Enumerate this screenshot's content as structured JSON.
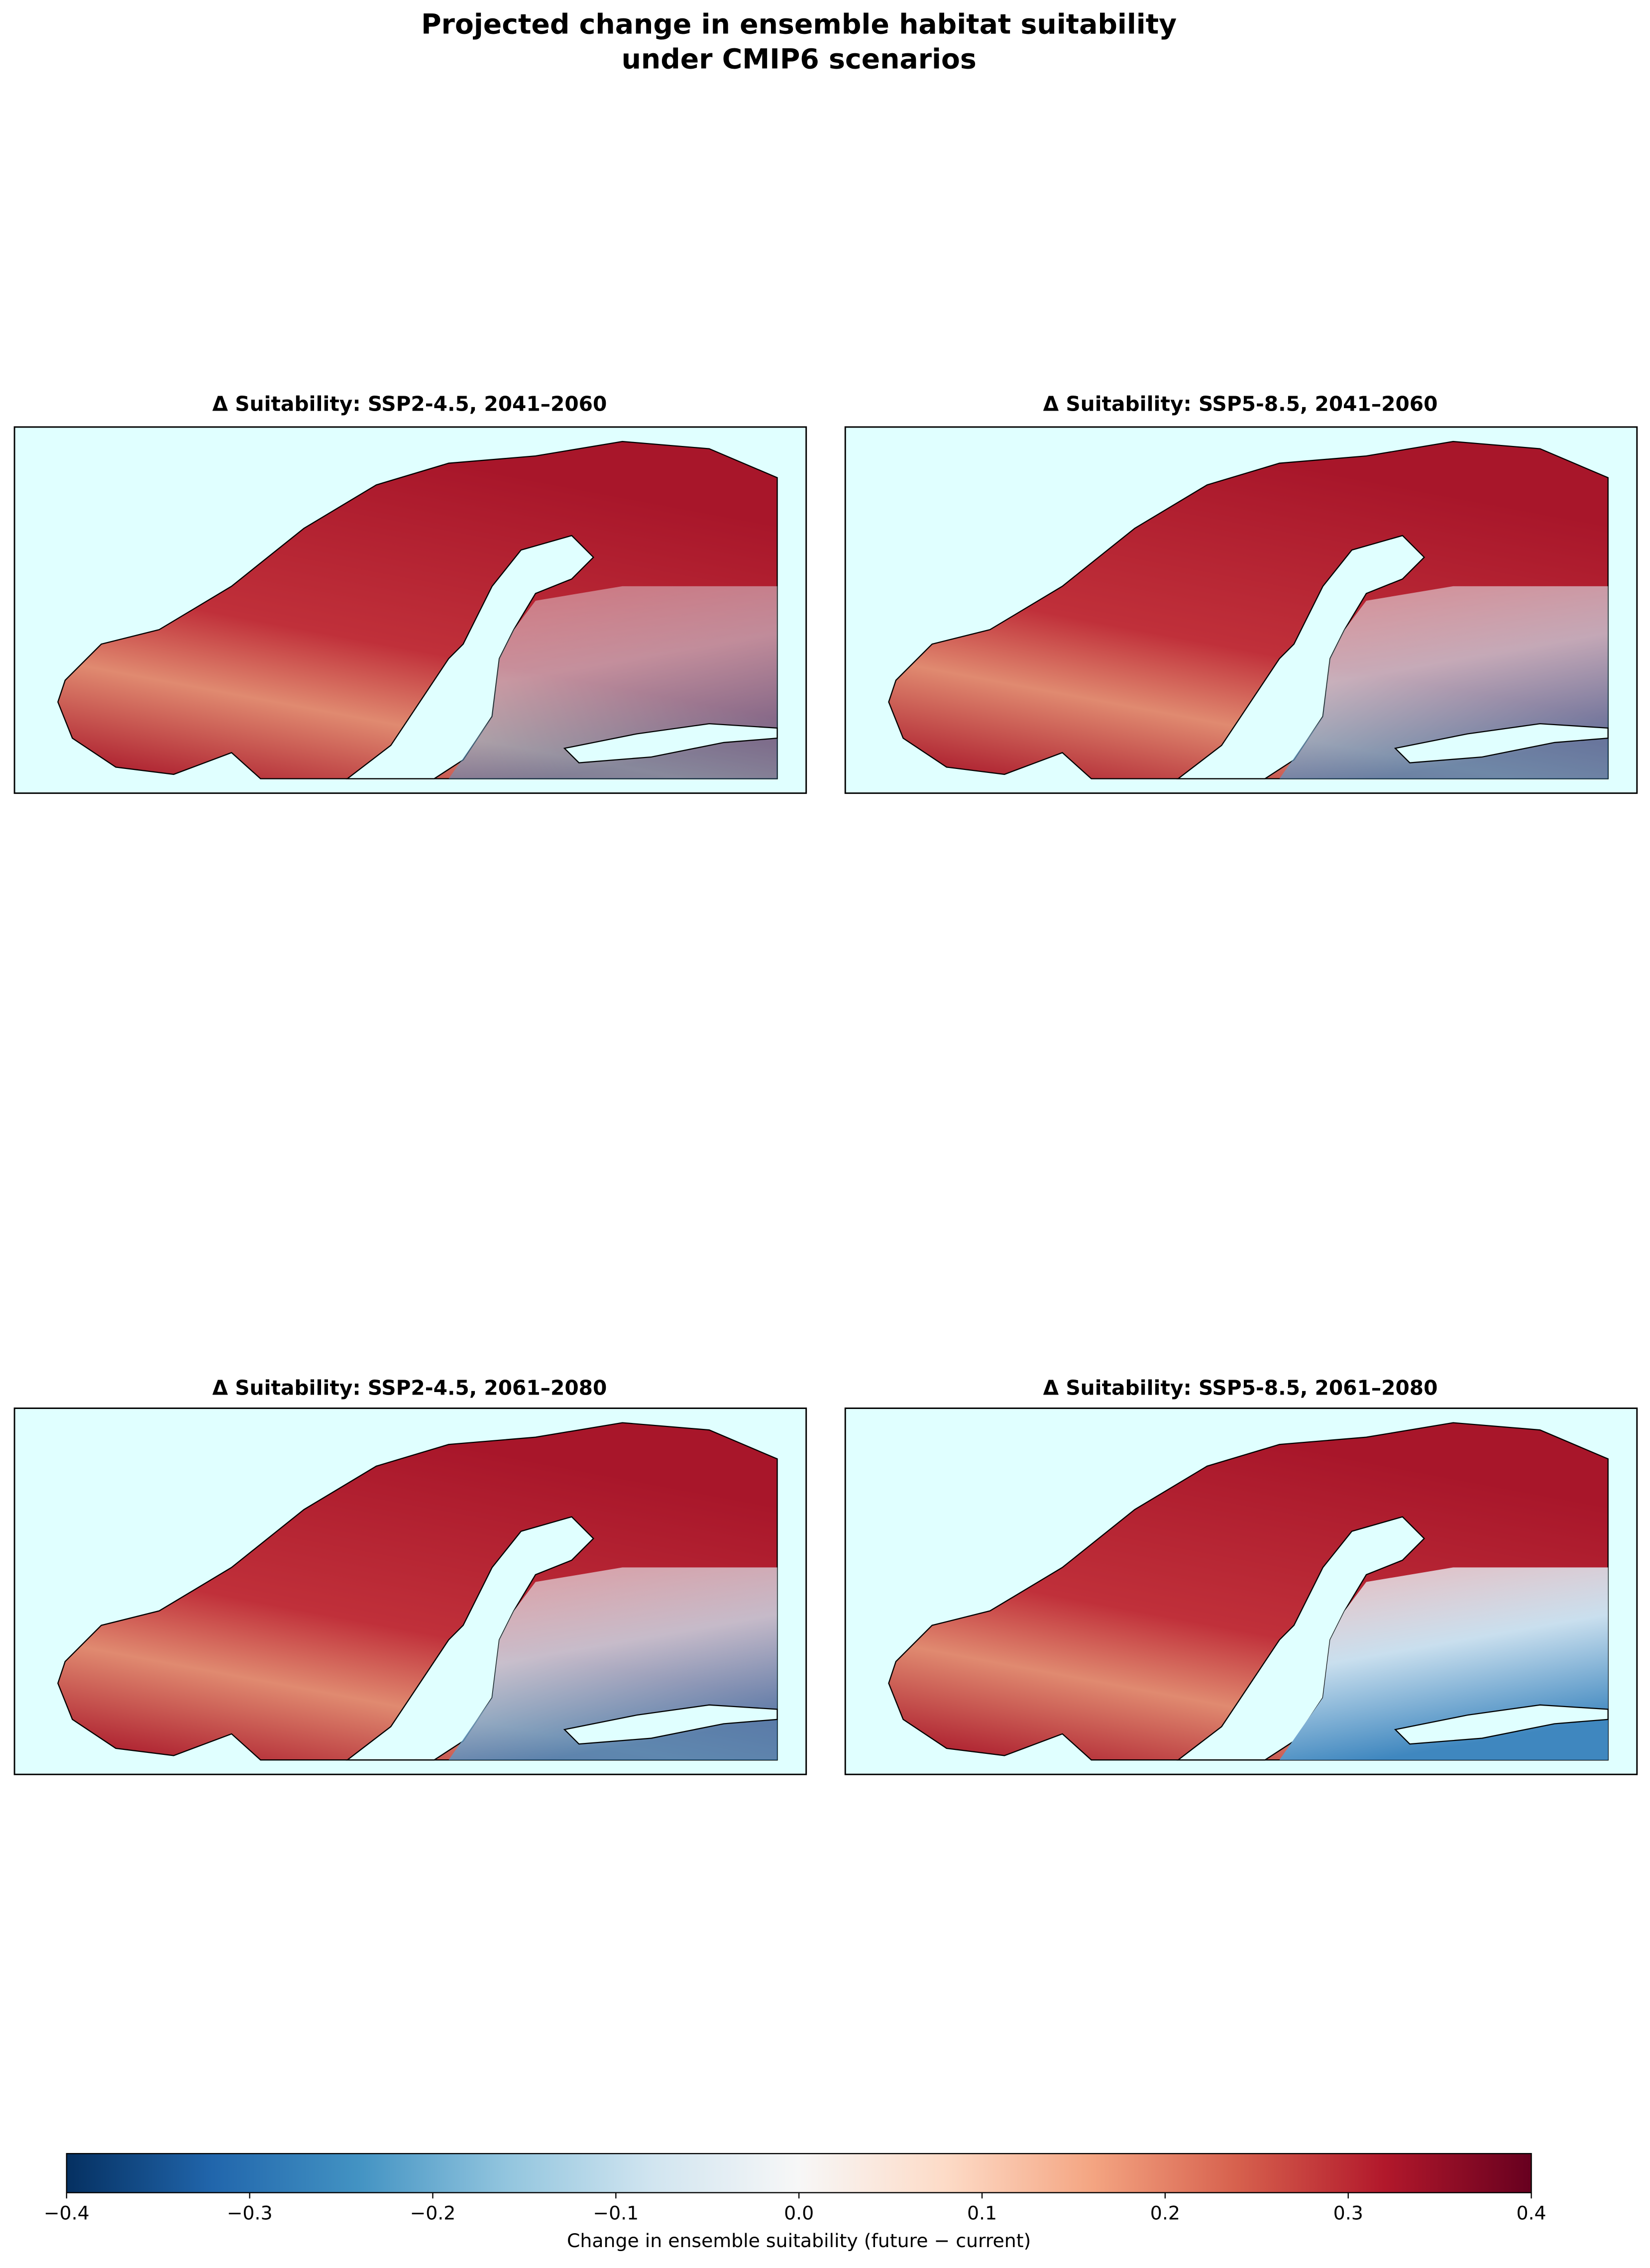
{
  "title": [
    "Projected change in ensemble habitat suitability",
    "under CMIP6 scenarios"
  ],
  "panels": [
    {
      "title": "Δ Suitability: SSP2-4.5, 2041–2060"
    },
    {
      "title": "Δ Suitability: SSP5-8.5, 2041–2060"
    },
    {
      "title": "Δ Suitability: SSP2-4.5, 2061–2080"
    },
    {
      "title": "Δ Suitability: SSP5-8.5, 2061–2080"
    }
  ],
  "colorbar": {
    "label": "Change in ensemble suitability (future − current)",
    "lim": [
      -0.4,
      0.4
    ],
    "ticks": [
      {
        "value": -0.4,
        "label": "−0.4"
      },
      {
        "value": -0.3,
        "label": "−0.3"
      },
      {
        "value": -0.2,
        "label": "−0.2"
      },
      {
        "value": -0.1,
        "label": "−0.1"
      },
      {
        "value": 0,
        "label": "0.0"
      },
      0.1,
      0.2,
      0.3,
      0.4
    ],
    "colors": [
      "#053061",
      "#2166ac",
      "#4393c3",
      "#92c5de",
      "#d1e5f0",
      "#f7f7f7",
      "#fddbc7",
      "#f4a582",
      "#d6604d",
      "#b2182b",
      "#67001f"
    ]
  }
}
